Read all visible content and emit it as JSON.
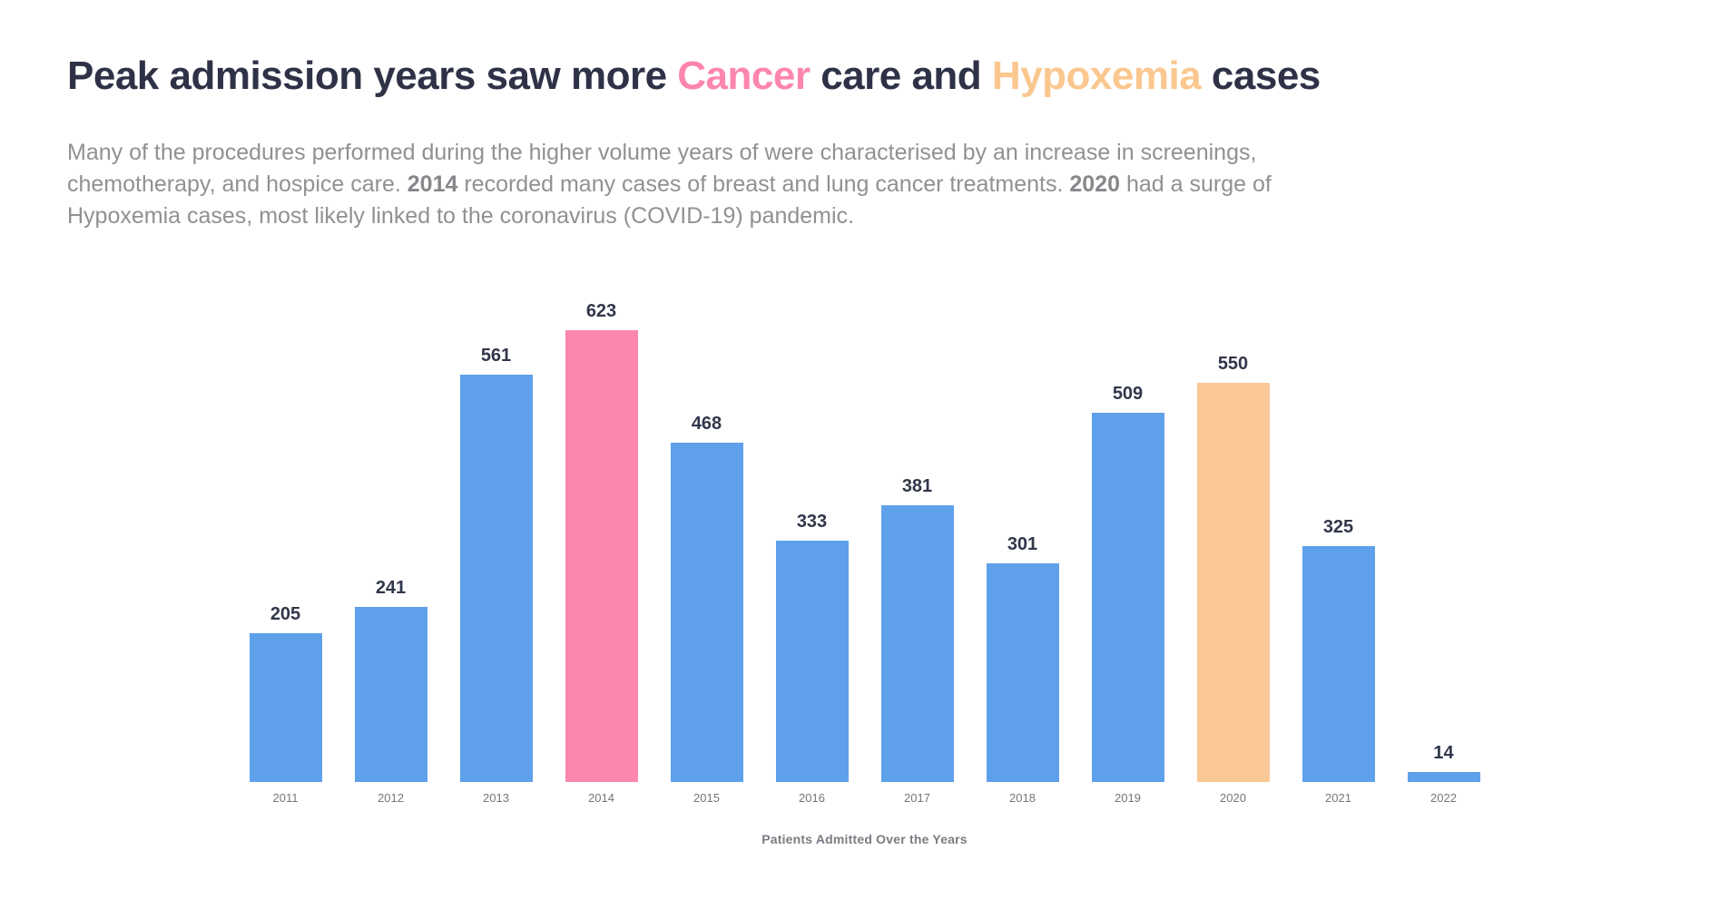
{
  "title": {
    "part1": "Peak admission years saw more",
    "cancer": "Cancer",
    "part2": "care and",
    "hypoxemia": "Hypoxemia",
    "part3": "cases"
  },
  "subtitle": {
    "line1": "Many of the procedures performed during the higher volume years of were characterised by an increase in screenings,",
    "line2_a": "chemotherapy, and hospice care.",
    "line2_bold1": "2014",
    "line2_b": "recorded many cases of breast and lung cancer treatments.",
    "line2_bold2": "2020",
    "line2_c": "had a surge of",
    "line3": "Hypoxemia cases, most likely linked to the coronavirus (COVID-19) pandemic."
  },
  "chart_data": {
    "type": "bar",
    "categories": [
      "2011",
      "2012",
      "2013",
      "2014",
      "2015",
      "2016",
      "2017",
      "2018",
      "2019",
      "2020",
      "2021",
      "2022"
    ],
    "values": [
      205,
      241,
      561,
      623,
      468,
      333,
      381,
      301,
      509,
      550,
      325,
      14
    ],
    "title": "Patients Admitted Over the Years",
    "xlabel": "Patients Admitted Over the Years",
    "ylabel": "",
    "ylim": [
      0,
      660
    ],
    "grid": false,
    "legend": false,
    "value_labels": true,
    "bar_colors": {
      "default": "#5FA0EB",
      "2014": "#FC87AC",
      "2020": "#FAC896"
    },
    "highlights": [
      {
        "category": "2014",
        "meaning": "Cancer care peak",
        "color": "#FC87AC"
      },
      {
        "category": "2020",
        "meaning": "Hypoxemia surge",
        "color": "#FAC896"
      }
    ]
  },
  "colors": {
    "title_text": "#2F3247",
    "cancer_accent": "#FC86AF",
    "hypoxemia_accent": "#FAC78F",
    "bar_default": "#5FA0EB",
    "subtitle_text": "#8F9193",
    "value_label": "#31364A",
    "axis_label": "#747679",
    "caption": "#797C83"
  }
}
